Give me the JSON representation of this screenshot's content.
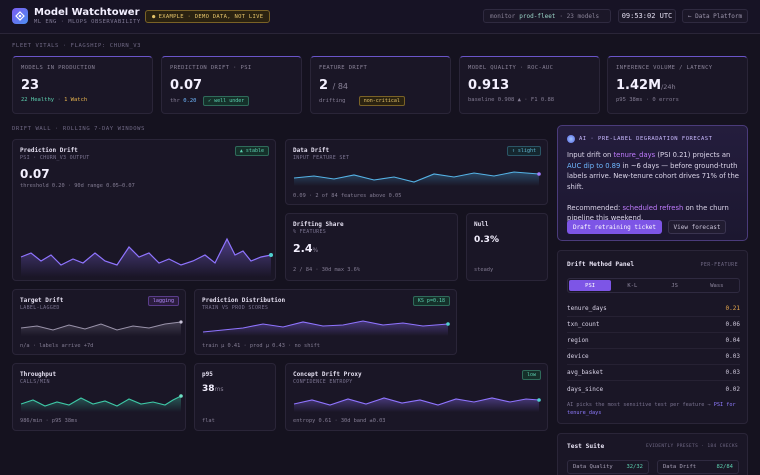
{
  "header": {
    "title": "Model Watchtower",
    "subtitle": "ML ENG · MLOPS OBSERVABILITY",
    "demo_badge": "EXAMPLE · DEMO DATA, NOT LIVE",
    "env_label": "monitor",
    "env_name": "prod-fleet",
    "env_count": "· 23 models",
    "clock": "09:53:02 UTC",
    "data_platform_label": "Data Platform"
  },
  "fleet": {
    "section_label": "FLEET VITALS · FLAGSHIP: CHURN_V3",
    "kpis": [
      {
        "label": "MODELS IN PRODUCTION",
        "value": "23",
        "healthy": "22 Healthy",
        "sep": "·",
        "watch": "1 Watch"
      },
      {
        "label": "PREDICTION DRIFT · PSI",
        "value": "0.07",
        "sub_prefix": "thr",
        "sub_value": "0.20",
        "tag": "✓ well under"
      },
      {
        "label": "FEATURE DRIFT",
        "value": "2",
        "value_suffix": "/ 84",
        "sub": "drifting",
        "tag": "non-critical"
      },
      {
        "label": "MODEL QUALITY · ROC-AUC",
        "value": "0.913",
        "sub": "baseline 0.908 ▲ · F1 0.88"
      },
      {
        "label": "INFERENCE VOLUME / LATENCY",
        "value": "1.42M",
        "value_suffix": "/24h",
        "sub": "p95 38ms · 0 errors"
      }
    ]
  },
  "drift_wall": {
    "section_label": "DRIFT WALL · ROLLING 7-DAY WINDOWS",
    "prediction_drift": {
      "title": "Prediction Drift",
      "subtitle": "PSI · CHURN_V3 OUTPUT",
      "badge": "▲ stable",
      "value": "0.07",
      "foot": "threshold 0.20 · 90d range 0.05–0.07"
    },
    "data_drift": {
      "title": "Data Drift",
      "subtitle": "INPUT FEATURE SET",
      "badge": "↑ slight",
      "foot": "0.09 · 2 of 84 features above 0.05"
    },
    "drifting_share": {
      "title": "Drifting Share",
      "subtitle": "% FEATURES",
      "value": "2.4",
      "unit": "%",
      "foot": "2 / 84 · 30d max 3.6%"
    },
    "null": {
      "title": "Null",
      "value": "0.3%",
      "foot": "steady"
    },
    "target_drift": {
      "title": "Target Drift",
      "subtitle": "LABEL-LAGGED",
      "badge": "lagging",
      "foot": "n/a · labels arrive +7d"
    },
    "prediction_distribution": {
      "title": "Prediction Distribution",
      "subtitle": "TRAIN VS PROD SCORES",
      "badge": "KS p=0.18",
      "foot": "train μ 0.41 · prod μ 0.43 · no shift"
    },
    "throughput": {
      "title": "Throughput",
      "subtitle": "CALLS/MIN",
      "foot": "986/min · p95 38ms"
    },
    "p95": {
      "title": "p95",
      "value": "38",
      "unit": "ms",
      "foot": "flat"
    },
    "concept_drift": {
      "title": "Concept Drift Proxy",
      "subtitle": "CONFIDENCE ENTROPY",
      "badge": "low",
      "foot": "entropy 0.61 · 30d band ±0.03"
    }
  },
  "ai_forecast": {
    "title": "AI · PRE-LABEL DEGRADATION FORECAST",
    "t1": "Input drift on ",
    "feature": "tenure_days",
    "t2": " (PSI 0.21) projects an ",
    "auc_dip": "AUC dip to 0.89",
    "t3": " in ~6 days — before ground-truth labels arrive. New-tenure cohort drives 71% of the shift.",
    "t4": "Recommended: ",
    "rec": "scheduled refresh",
    "t5": " on the churn pipeline this weekend.",
    "primary_button": "Draft retraining ticket",
    "secondary_button": "View forecast"
  },
  "drift_method": {
    "title": "Drift Method Panel",
    "per_feature": "PER-FEATURE",
    "methods": [
      "PSI",
      "K-L",
      "JS",
      "Wass"
    ],
    "features": [
      {
        "name": "tenure_days",
        "value": "0.21"
      },
      {
        "name": "txn_count",
        "value": "0.06"
      },
      {
        "name": "region",
        "value": "0.04"
      },
      {
        "name": "device",
        "value": "0.03"
      },
      {
        "name": "avg_basket",
        "value": "0.03"
      },
      {
        "name": "days_since",
        "value": "0.02"
      }
    ],
    "note_prefix": "AI picks the most sensitive test per feature → ",
    "note_value": "PSI for tenure_days"
  },
  "test_suite": {
    "title": "Test Suite",
    "presets": "EVIDENTLY PRESETS · 184 CHECKS",
    "tests": [
      {
        "name": "Data Quality",
        "value": "32/32"
      },
      {
        "name": "Data Drift",
        "value": "82/84"
      }
    ]
  }
}
